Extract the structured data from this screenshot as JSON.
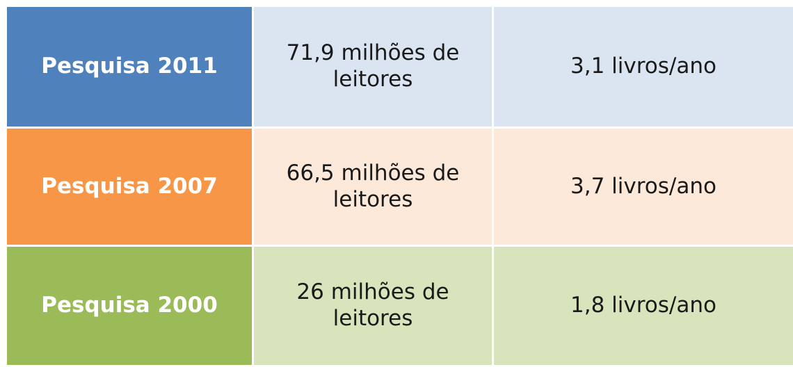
{
  "table": {
    "rows": [
      [
        "Pesquisa 2011",
        "71,9 milhões de leitores",
        "3,1 livros/ano"
      ],
      [
        "Pesquisa 2007",
        "66,5 milhões de leitores",
        "3,7 livros/ano"
      ],
      [
        "Pesquisa 2000",
        "26 milhões de leitores",
        "1,8 livros/ano"
      ]
    ]
  }
}
